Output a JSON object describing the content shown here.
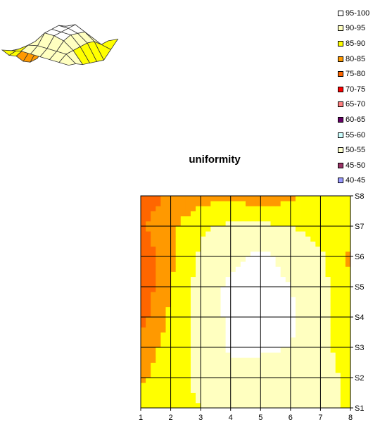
{
  "chart_data": [
    {
      "type": "surface",
      "legend": [
        {
          "label": "95-100",
          "color": "#FFFFFF"
        },
        {
          "label": "90-95",
          "color": "#FFFFC0"
        },
        {
          "label": "85-90",
          "color": "#FFFF00"
        },
        {
          "label": "80-85",
          "color": "#FF9900"
        },
        {
          "label": "75-80",
          "color": "#FF6600"
        },
        {
          "label": "70-75",
          "color": "#FF0000"
        },
        {
          "label": "65-70",
          "color": "#FF8080"
        },
        {
          "label": "60-65",
          "color": "#660066"
        },
        {
          "label": "55-60",
          "color": "#CCFFFF"
        },
        {
          "label": "50-55",
          "color": "#FFFFCC"
        },
        {
          "label": "45-50",
          "color": "#993366"
        },
        {
          "label": "40-45",
          "color": "#9999FF"
        }
      ]
    },
    {
      "type": "heatmap",
      "title": "uniformity",
      "x_ticks": [
        "1",
        "2",
        "3",
        "4",
        "5",
        "6",
        "7",
        "8"
      ],
      "y_ticks": [
        "S1",
        "S2",
        "S3",
        "S4",
        "S5",
        "S6",
        "S7",
        "S8"
      ],
      "xlim": [
        1,
        8
      ],
      "grid": true,
      "values": [
        [
          88,
          89,
          90,
          90,
          90,
          90,
          90,
          90
        ],
        [
          84,
          88,
          91,
          92,
          92,
          92,
          92,
          89
        ],
        [
          82,
          87,
          91,
          96,
          96,
          95,
          92,
          87
        ],
        [
          78,
          86,
          92,
          96,
          96,
          96,
          92,
          86
        ],
        [
          76,
          85,
          92,
          96,
          96,
          95,
          92,
          85
        ],
        [
          76,
          84,
          91,
          94,
          96,
          94,
          91,
          84
        ],
        [
          79,
          84,
          89,
          91,
          91,
          90,
          88,
          87
        ],
        [
          77,
          81,
          83,
          84,
          82,
          84,
          88,
          90
        ]
      ]
    }
  ]
}
